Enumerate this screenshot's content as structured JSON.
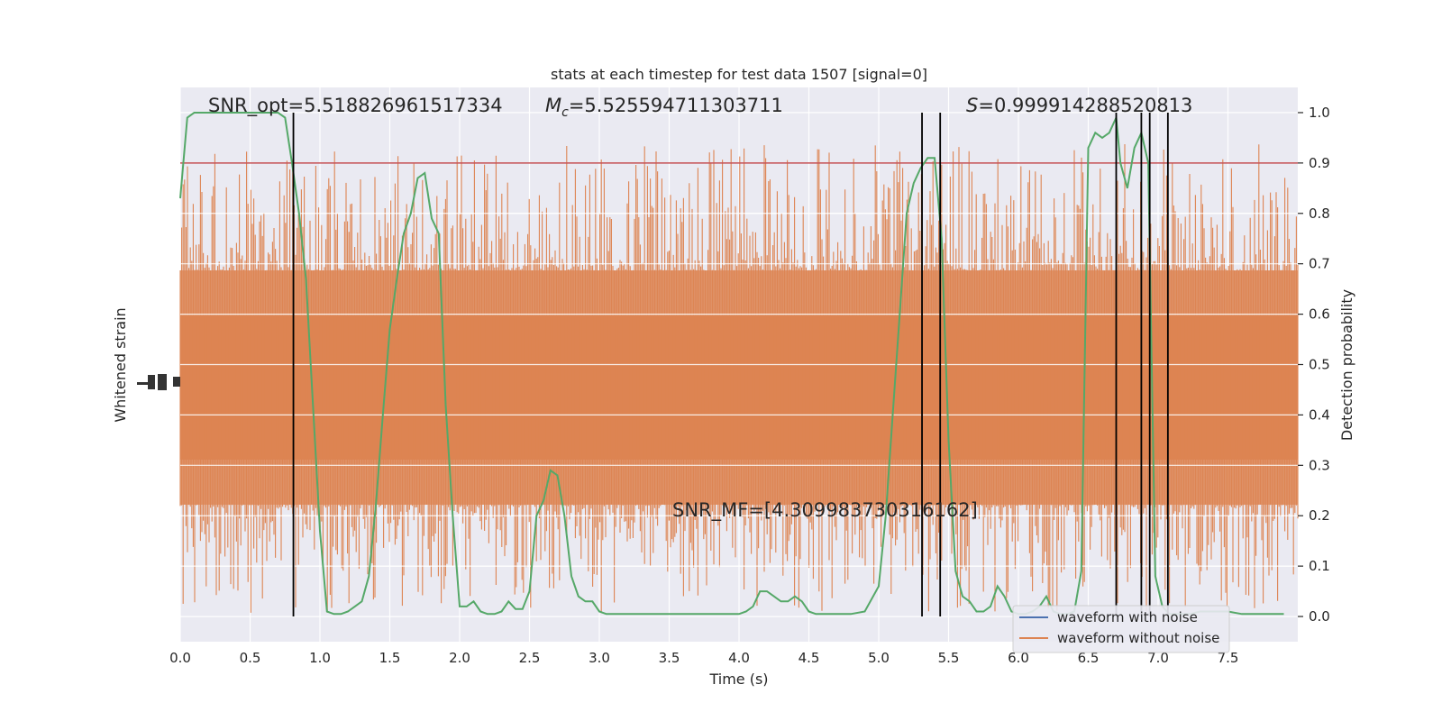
{
  "chart_data": {
    "type": "line",
    "title": "stats at each timestep for test data 1507 [signal=0]",
    "xlabel": "Time (s)",
    "ylabel_left": "Whitened strain",
    "ylabel_right": "Detection probability",
    "xlim": [
      0.0,
      8.0
    ],
    "ylim_right": [
      -0.05,
      1.05
    ],
    "xticks": [
      "0.0",
      "0.5",
      "1.0",
      "1.5",
      "2.0",
      "2.5",
      "3.0",
      "3.5",
      "4.0",
      "4.5",
      "5.0",
      "5.5",
      "6.0",
      "6.5",
      "7.0",
      "7.5"
    ],
    "yticks_right": [
      "0.0",
      "0.1",
      "0.2",
      "0.3",
      "0.4",
      "0.5",
      "0.6",
      "0.7",
      "0.8",
      "0.9",
      "1.0"
    ],
    "threshold": 0.9,
    "vlines": [
      0.81,
      5.31,
      5.44,
      6.7,
      6.88,
      6.94,
      7.07
    ],
    "annotations": {
      "snr_opt": "SNR_opt=5.518826961517334",
      "mc_symbol": "M",
      "mc_sub": "c",
      "mc_value": "=5.525594711303711",
      "s_symbol": "S",
      "s_value": "=0.999914288520813",
      "snr_mf": "SNR_MF=[4.309983730316162]"
    },
    "legend": [
      "waveform with noise",
      "waveform without noise"
    ],
    "legend_position": "lower-right",
    "grid": true,
    "colors": {
      "background": "#eaeaf2",
      "grid": "#ffffff",
      "noise": "#dd8452",
      "clean": "#4c72b0",
      "probability": "#55a868",
      "threshold": "#c44e52",
      "vline": "#000000"
    },
    "series": [
      {
        "name": "",
        "x": [
          0.0,
          0.05,
          0.1,
          0.2,
          0.3,
          0.4,
          0.5,
          0.6,
          0.7,
          0.75,
          0.8,
          0.85,
          0.9,
          1.0,
          1.05,
          1.1,
          1.15,
          1.2,
          1.25,
          1.3,
          1.35,
          1.4,
          1.45,
          1.5,
          1.55,
          1.6,
          1.65,
          1.7,
          1.75,
          1.8,
          1.85,
          1.9,
          1.95,
          2.0,
          2.05,
          2.1,
          2.15,
          2.2,
          2.25,
          2.3,
          2.35,
          2.4,
          2.45,
          2.5,
          2.55,
          2.6,
          2.65,
          2.7,
          2.75,
          2.8,
          2.85,
          2.9,
          2.95,
          3.0,
          3.05,
          3.1,
          3.15,
          3.2,
          3.3,
          3.4,
          3.5,
          3.6,
          3.7,
          3.8,
          3.9,
          4.0,
          4.05,
          4.1,
          4.15,
          4.2,
          4.25,
          4.3,
          4.35,
          4.4,
          4.45,
          4.5,
          4.55,
          4.6,
          4.7,
          4.8,
          4.9,
          5.0,
          5.05,
          5.1,
          5.15,
          5.2,
          5.25,
          5.3,
          5.35,
          5.4,
          5.45,
          5.5,
          5.55,
          5.6,
          5.65,
          5.7,
          5.75,
          5.8,
          5.85,
          5.9,
          5.95,
          6.0,
          6.05,
          6.1,
          6.15,
          6.2,
          6.25,
          6.3,
          6.35,
          6.4,
          6.45,
          6.5,
          6.55,
          6.6,
          6.65,
          6.7,
          6.73,
          6.78,
          6.83,
          6.88,
          6.93,
          6.98,
          7.03,
          7.08,
          7.13,
          7.18,
          7.23,
          7.3,
          7.4,
          7.5,
          7.6,
          7.7,
          7.8,
          7.9
        ],
        "y": [
          0.83,
          0.99,
          1.0,
          1.0,
          1.0,
          1.0,
          1.0,
          1.0,
          1.0,
          0.99,
          0.9,
          0.8,
          0.67,
          0.17,
          0.01,
          0.005,
          0.005,
          0.01,
          0.02,
          0.03,
          0.08,
          0.22,
          0.4,
          0.57,
          0.67,
          0.76,
          0.8,
          0.87,
          0.88,
          0.79,
          0.76,
          0.42,
          0.2,
          0.02,
          0.02,
          0.03,
          0.01,
          0.005,
          0.005,
          0.01,
          0.03,
          0.015,
          0.015,
          0.05,
          0.2,
          0.23,
          0.29,
          0.28,
          0.2,
          0.08,
          0.04,
          0.03,
          0.03,
          0.01,
          0.005,
          0.005,
          0.005,
          0.005,
          0.005,
          0.005,
          0.005,
          0.005,
          0.005,
          0.005,
          0.005,
          0.005,
          0.01,
          0.02,
          0.05,
          0.05,
          0.04,
          0.03,
          0.03,
          0.04,
          0.03,
          0.01,
          0.005,
          0.005,
          0.005,
          0.005,
          0.01,
          0.06,
          0.2,
          0.4,
          0.6,
          0.8,
          0.86,
          0.89,
          0.91,
          0.91,
          0.75,
          0.35,
          0.09,
          0.04,
          0.03,
          0.01,
          0.01,
          0.02,
          0.06,
          0.04,
          0.01,
          0.005,
          0.005,
          0.01,
          0.02,
          0.04,
          0.01,
          0.005,
          0.005,
          0.01,
          0.09,
          0.93,
          0.96,
          0.95,
          0.96,
          0.99,
          0.9,
          0.85,
          0.93,
          0.96,
          0.9,
          0.08,
          0.02,
          0.005,
          0.005,
          0.005,
          0.005,
          0.01,
          0.01,
          0.01,
          0.005,
          0.005,
          0.005,
          0.005
        ]
      }
    ]
  }
}
